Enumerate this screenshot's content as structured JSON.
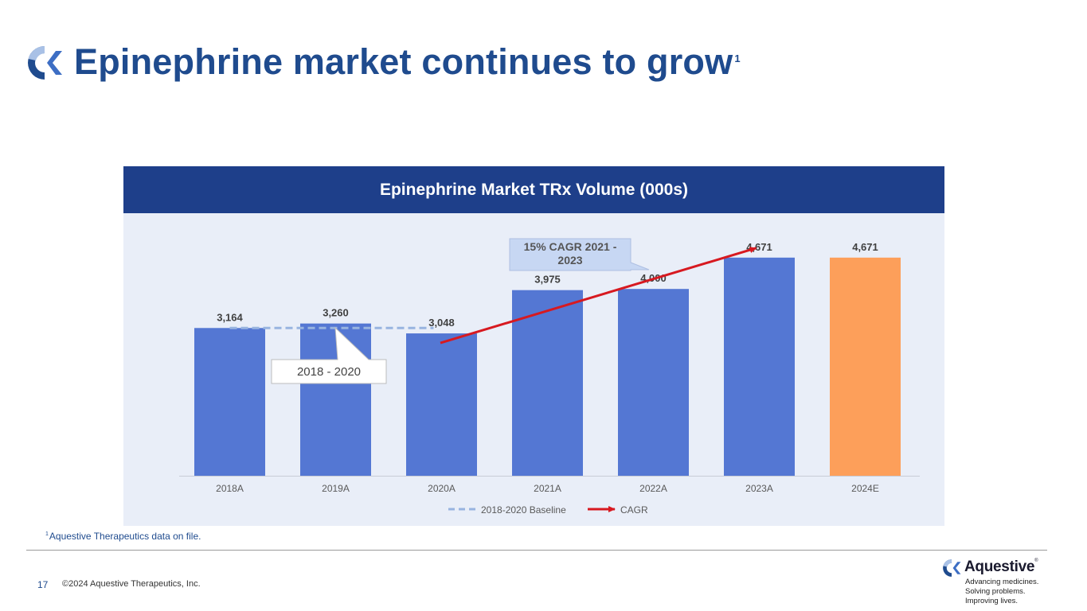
{
  "slide": {
    "title": "Epinephrine market continues to grow",
    "title_superscript": "1",
    "page_number": "17",
    "copyright": "©2024 Aquestive Therapeutics, Inc.",
    "footnote_marker": "1",
    "footnote_text": "Aquestive Therapeutics data on file.",
    "brand_name": "Aquestive",
    "brand_mark": "®",
    "tagline": [
      "Advancing medicines.",
      "Solving problems.",
      "Improving lives."
    ],
    "logo_icon": "aquestive-c-logo-icon",
    "accent_color": "#1f4b8e"
  },
  "chart_data": {
    "type": "bar",
    "title": "Epinephrine Market TRx Volume (000s)",
    "categories": [
      "2018A",
      "2019A",
      "2020A",
      "2021A",
      "2022A",
      "2023A",
      "2024E"
    ],
    "values": [
      3164,
      3260,
      3048,
      3975,
      4000,
      4671,
      4671
    ],
    "data_labels": [
      "3,164",
      "3,260",
      "3,048",
      "3,975",
      "4,000",
      "4,671",
      "4,671"
    ],
    "bar_colors": [
      "#5477d3",
      "#5477d3",
      "#5477d3",
      "#5477d3",
      "#5477d3",
      "#5477d3",
      "#fd9f5a"
    ],
    "ylim": [
      0,
      5000
    ],
    "grid": false,
    "baseline": {
      "name": "2018-2020 Baseline",
      "value": 3164,
      "from": "2018A",
      "to": "2020A",
      "color": "#98b4e0"
    },
    "cagr": {
      "name": "CAGR",
      "from": [
        "2020A",
        3048
      ],
      "to": [
        "2023A",
        4671
      ],
      "color": "#d71920"
    },
    "annotations": [
      {
        "text": [
          "15% CAGR 2021 -",
          "2023"
        ],
        "points_to": "2022A"
      },
      {
        "text": [
          "2018 - 2020"
        ],
        "points_to": "2019A"
      }
    ],
    "legend": {
      "placement": "bottom",
      "entries": [
        "2018-2020 Baseline",
        "CAGR"
      ]
    }
  }
}
